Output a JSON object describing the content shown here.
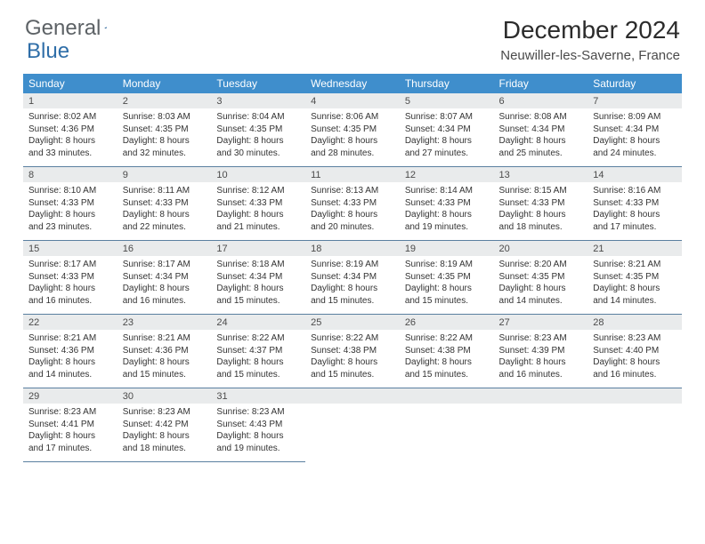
{
  "brand": {
    "general": "General",
    "blue": "Blue"
  },
  "title": "December 2024",
  "location": "Neuwiller-les-Saverne, France",
  "colors": {
    "header_bg": "#3f8ecc",
    "header_text": "#ffffff",
    "daynum_bg": "#e9ebec",
    "divider": "#5a7fa0",
    "brand_gray": "#5d6266",
    "brand_blue": "#2f6ea8"
  },
  "dayHeaders": [
    "Sunday",
    "Monday",
    "Tuesday",
    "Wednesday",
    "Thursday",
    "Friday",
    "Saturday"
  ],
  "weeks": [
    [
      {
        "n": "1",
        "sr": "Sunrise: 8:02 AM",
        "ss": "Sunset: 4:36 PM",
        "d1": "Daylight: 8 hours",
        "d2": "and 33 minutes."
      },
      {
        "n": "2",
        "sr": "Sunrise: 8:03 AM",
        "ss": "Sunset: 4:35 PM",
        "d1": "Daylight: 8 hours",
        "d2": "and 32 minutes."
      },
      {
        "n": "3",
        "sr": "Sunrise: 8:04 AM",
        "ss": "Sunset: 4:35 PM",
        "d1": "Daylight: 8 hours",
        "d2": "and 30 minutes."
      },
      {
        "n": "4",
        "sr": "Sunrise: 8:06 AM",
        "ss": "Sunset: 4:35 PM",
        "d1": "Daylight: 8 hours",
        "d2": "and 28 minutes."
      },
      {
        "n": "5",
        "sr": "Sunrise: 8:07 AM",
        "ss": "Sunset: 4:34 PM",
        "d1": "Daylight: 8 hours",
        "d2": "and 27 minutes."
      },
      {
        "n": "6",
        "sr": "Sunrise: 8:08 AM",
        "ss": "Sunset: 4:34 PM",
        "d1": "Daylight: 8 hours",
        "d2": "and 25 minutes."
      },
      {
        "n": "7",
        "sr": "Sunrise: 8:09 AM",
        "ss": "Sunset: 4:34 PM",
        "d1": "Daylight: 8 hours",
        "d2": "and 24 minutes."
      }
    ],
    [
      {
        "n": "8",
        "sr": "Sunrise: 8:10 AM",
        "ss": "Sunset: 4:33 PM",
        "d1": "Daylight: 8 hours",
        "d2": "and 23 minutes."
      },
      {
        "n": "9",
        "sr": "Sunrise: 8:11 AM",
        "ss": "Sunset: 4:33 PM",
        "d1": "Daylight: 8 hours",
        "d2": "and 22 minutes."
      },
      {
        "n": "10",
        "sr": "Sunrise: 8:12 AM",
        "ss": "Sunset: 4:33 PM",
        "d1": "Daylight: 8 hours",
        "d2": "and 21 minutes."
      },
      {
        "n": "11",
        "sr": "Sunrise: 8:13 AM",
        "ss": "Sunset: 4:33 PM",
        "d1": "Daylight: 8 hours",
        "d2": "and 20 minutes."
      },
      {
        "n": "12",
        "sr": "Sunrise: 8:14 AM",
        "ss": "Sunset: 4:33 PM",
        "d1": "Daylight: 8 hours",
        "d2": "and 19 minutes."
      },
      {
        "n": "13",
        "sr": "Sunrise: 8:15 AM",
        "ss": "Sunset: 4:33 PM",
        "d1": "Daylight: 8 hours",
        "d2": "and 18 minutes."
      },
      {
        "n": "14",
        "sr": "Sunrise: 8:16 AM",
        "ss": "Sunset: 4:33 PM",
        "d1": "Daylight: 8 hours",
        "d2": "and 17 minutes."
      }
    ],
    [
      {
        "n": "15",
        "sr": "Sunrise: 8:17 AM",
        "ss": "Sunset: 4:33 PM",
        "d1": "Daylight: 8 hours",
        "d2": "and 16 minutes."
      },
      {
        "n": "16",
        "sr": "Sunrise: 8:17 AM",
        "ss": "Sunset: 4:34 PM",
        "d1": "Daylight: 8 hours",
        "d2": "and 16 minutes."
      },
      {
        "n": "17",
        "sr": "Sunrise: 8:18 AM",
        "ss": "Sunset: 4:34 PM",
        "d1": "Daylight: 8 hours",
        "d2": "and 15 minutes."
      },
      {
        "n": "18",
        "sr": "Sunrise: 8:19 AM",
        "ss": "Sunset: 4:34 PM",
        "d1": "Daylight: 8 hours",
        "d2": "and 15 minutes."
      },
      {
        "n": "19",
        "sr": "Sunrise: 8:19 AM",
        "ss": "Sunset: 4:35 PM",
        "d1": "Daylight: 8 hours",
        "d2": "and 15 minutes."
      },
      {
        "n": "20",
        "sr": "Sunrise: 8:20 AM",
        "ss": "Sunset: 4:35 PM",
        "d1": "Daylight: 8 hours",
        "d2": "and 14 minutes."
      },
      {
        "n": "21",
        "sr": "Sunrise: 8:21 AM",
        "ss": "Sunset: 4:35 PM",
        "d1": "Daylight: 8 hours",
        "d2": "and 14 minutes."
      }
    ],
    [
      {
        "n": "22",
        "sr": "Sunrise: 8:21 AM",
        "ss": "Sunset: 4:36 PM",
        "d1": "Daylight: 8 hours",
        "d2": "and 14 minutes."
      },
      {
        "n": "23",
        "sr": "Sunrise: 8:21 AM",
        "ss": "Sunset: 4:36 PM",
        "d1": "Daylight: 8 hours",
        "d2": "and 15 minutes."
      },
      {
        "n": "24",
        "sr": "Sunrise: 8:22 AM",
        "ss": "Sunset: 4:37 PM",
        "d1": "Daylight: 8 hours",
        "d2": "and 15 minutes."
      },
      {
        "n": "25",
        "sr": "Sunrise: 8:22 AM",
        "ss": "Sunset: 4:38 PM",
        "d1": "Daylight: 8 hours",
        "d2": "and 15 minutes."
      },
      {
        "n": "26",
        "sr": "Sunrise: 8:22 AM",
        "ss": "Sunset: 4:38 PM",
        "d1": "Daylight: 8 hours",
        "d2": "and 15 minutes."
      },
      {
        "n": "27",
        "sr": "Sunrise: 8:23 AM",
        "ss": "Sunset: 4:39 PM",
        "d1": "Daylight: 8 hours",
        "d2": "and 16 minutes."
      },
      {
        "n": "28",
        "sr": "Sunrise: 8:23 AM",
        "ss": "Sunset: 4:40 PM",
        "d1": "Daylight: 8 hours",
        "d2": "and 16 minutes."
      }
    ],
    [
      {
        "n": "29",
        "sr": "Sunrise: 8:23 AM",
        "ss": "Sunset: 4:41 PM",
        "d1": "Daylight: 8 hours",
        "d2": "and 17 minutes."
      },
      {
        "n": "30",
        "sr": "Sunrise: 8:23 AM",
        "ss": "Sunset: 4:42 PM",
        "d1": "Daylight: 8 hours",
        "d2": "and 18 minutes."
      },
      {
        "n": "31",
        "sr": "Sunrise: 8:23 AM",
        "ss": "Sunset: 4:43 PM",
        "d1": "Daylight: 8 hours",
        "d2": "and 19 minutes."
      },
      null,
      null,
      null,
      null
    ]
  ]
}
